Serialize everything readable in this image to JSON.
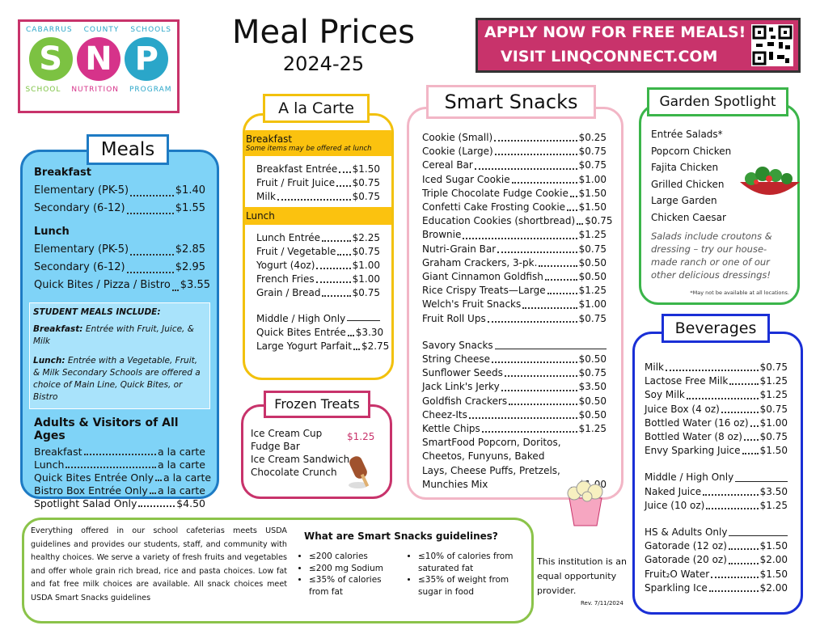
{
  "logo": {
    "top": [
      "CABARRUS",
      "COUNTY",
      "SCHOOLS"
    ],
    "letters": [
      "S",
      "N",
      "P"
    ],
    "bottom": [
      "SCHOOL",
      "NUTRITION",
      "PROGRAM"
    ]
  },
  "header": {
    "title": "Meal Prices",
    "year": "2024-25",
    "banner": [
      "APPLY NOW FOR FREE MEALS!",
      "VISIT LINQCONNECT.COM"
    ]
  },
  "meals": {
    "title": "Meals",
    "sections": [
      {
        "heading": "Breakfast",
        "items": [
          {
            "name": "Elementary (PK-5)",
            "price": "$1.40"
          },
          {
            "name": "Secondary (6-12)",
            "price": "$1.55"
          }
        ]
      },
      {
        "heading": "Lunch",
        "items": [
          {
            "name": "Elementary (PK-5)",
            "price": "$2.85"
          },
          {
            "name": "Secondary (6-12)",
            "price": "$2.95"
          },
          {
            "name": "Quick Bites / Pizza / Bistro",
            "price": "$3.55"
          }
        ]
      }
    ],
    "note": {
      "heading": "STUDENT MEALS INCLUDE:",
      "breakfast_label": "Breakfast:",
      "breakfast": "Entrée with Fruit, Juice, & Milk",
      "lunch_label": "Lunch:",
      "lunch": "Entrée with a Vegetable, Fruit, & Milk Secondary Schools are offered a choice of Main Line, Quick Bites, or Bistro"
    },
    "adults": {
      "heading": "Adults & Visitors of All Ages",
      "items": [
        {
          "name": "Breakfast",
          "price": "a la carte"
        },
        {
          "name": "Lunch",
          "price": "a la carte"
        },
        {
          "name": "Quick Bites Entrée Only",
          "price": "a la carte"
        },
        {
          "name": "Bistro Box Entrée Only",
          "price": "a la carte"
        },
        {
          "name": "Spotlight Salad Only",
          "price": "$4.50"
        }
      ]
    }
  },
  "a_la_carte": {
    "title": "A la Carte",
    "breakfast": {
      "heading": "Breakfast",
      "subheading": "Some items may be offered at lunch",
      "items": [
        {
          "name": "Breakfast Entrée",
          "price": "$1.50"
        },
        {
          "name": "Fruit / Fruit Juice",
          "price": "$0.75"
        },
        {
          "name": "Milk",
          "price": "$0.75"
        }
      ]
    },
    "lunch": {
      "heading": "Lunch",
      "items": [
        {
          "name": "Lunch Entrée",
          "price": "$2.25"
        },
        {
          "name": "Fruit / Vegetable",
          "price": "$0.75"
        },
        {
          "name": "Yogurt (4oz)",
          "price": "$1.00"
        },
        {
          "name": "French Fries",
          "price": "$1.00"
        },
        {
          "name": "Grain / Bread",
          "price": "$0.75"
        }
      ]
    },
    "middle_high": {
      "heading": "Middle / High Only",
      "items": [
        {
          "name": "Quick Bites Entrée",
          "price": "$3.30"
        },
        {
          "name": "Large Yogurt Parfait",
          "price": "$2.75"
        }
      ]
    }
  },
  "frozen_treats": {
    "title": "Frozen Treats",
    "items": [
      "Ice Cream Cup",
      "Fudge Bar",
      "Ice Cream Sandwich",
      "Chocolate Crunch"
    ],
    "price": "$1.25"
  },
  "smart_snacks": {
    "title": "Smart Snacks",
    "sections": [
      {
        "items": [
          {
            "name": "Cookie (Small)",
            "price": "$0.25"
          },
          {
            "name": "Cookie (Large)",
            "price": "$0.75"
          },
          {
            "name": "Cereal Bar",
            "price": "$0.75"
          },
          {
            "name": "Iced Sugar Cookie",
            "price": "$1.00"
          },
          {
            "name": "Triple Chocolate Fudge Cookie",
            "price": "$1.50"
          },
          {
            "name": "Confetti Cake Frosting Cookie",
            "price": "$1.50"
          },
          {
            "name": "Education Cookies (shortbread)",
            "price": "$0.75"
          },
          {
            "name": "Brownie",
            "price": "$1.25"
          },
          {
            "name": "Nutri-Grain Bar",
            "price": "$0.75"
          },
          {
            "name": "Graham Crackers, 3-pk.",
            "price": "$0.50"
          },
          {
            "name": "Giant Cinnamon Goldfish",
            "price": "$0.50"
          },
          {
            "name": "Rice Crispy Treats—Large",
            "price": "$1.25"
          },
          {
            "name": "Welch's Fruit Snacks",
            "price": "$1.00"
          },
          {
            "name": "Fruit Roll Ups",
            "price": "$0.75"
          }
        ]
      },
      {
        "heading": "Savory Snacks",
        "items": [
          {
            "name": "String Cheese",
            "price": "$0.50"
          },
          {
            "name": "Sunflower Seeds",
            "price": "$0.75"
          },
          {
            "name": "Jack Link's Jerky",
            "price": "$3.50"
          },
          {
            "name": "Goldfish Crackers",
            "price": "$0.50"
          },
          {
            "name": "Cheez-Its",
            "price": "$0.50"
          },
          {
            "name": "Kettle Chips",
            "price": "$1.25"
          },
          {
            "name": "SmartFood Popcorn, Doritos, Cheetos, Funyuns, Baked Lays, Cheese Puffs, Pretzels, Munchies Mix",
            "price": "$1.00"
          }
        ]
      }
    ]
  },
  "garden_spotlight": {
    "title": "Garden Spotlight",
    "items": [
      "Entrée Salads*",
      "Popcorn Chicken",
      "Fajita Chicken",
      "Grilled Chicken",
      "Large Garden",
      "Chicken Caesar"
    ],
    "note": "Salads include croutons & dressing – try our house-made ranch or one of our other delicious dressings!",
    "footnote": "*May not be available at all locations."
  },
  "beverages": {
    "title": "Beverages",
    "sections": [
      {
        "items": [
          {
            "name": "Milk",
            "price": "$0.75"
          },
          {
            "name": "Lactose Free Milk",
            "price": "$1.25"
          },
          {
            "name": "Soy Milk",
            "price": "$1.25"
          },
          {
            "name": "Juice Box (4 oz)",
            "price": "$0.75"
          },
          {
            "name": "Bottled Water (16 oz)",
            "price": "$1.00"
          },
          {
            "name": "Bottled Water (8 oz)",
            "price": "$0.75"
          },
          {
            "name": "Envy Sparking Juice",
            "price": "$1.50"
          }
        ]
      },
      {
        "heading": "Middle / High Only",
        "items": [
          {
            "name": "Naked Juice",
            "price": "$3.50"
          },
          {
            "name": "Juice (10 oz)",
            "price": "$1.25"
          }
        ]
      },
      {
        "heading": "HS & Adults Only",
        "items": [
          {
            "name": "Gatorade (12 oz)",
            "price": "$1.50"
          },
          {
            "name": "Gatorade (20 oz)",
            "price": "$2.00"
          },
          {
            "name": "Fruit₂O Water",
            "price": "$1.50"
          },
          {
            "name": "Sparkling Ice",
            "price": "$2.00"
          }
        ]
      }
    ]
  },
  "footer": {
    "usda": "Everything offered in our school cafeterias meets USDA guidelines and provides our students, staff, and community with healthy choices. We serve a variety of fresh fruits and vegetables and offer whole grain rich bread, rice and pasta choices. Low fat and fat free milk choices are available. All snack choices meet USDA Smart Snacks guidelines",
    "guidelines_title": "What are Smart Snacks guidelines?",
    "guidelines": [
      "≤200 calories",
      "≤200 mg Sodium",
      "≤35% of calories from fat",
      "≤10% of calories from saturated fat",
      "≤35% of weight from sugar in food"
    ],
    "equal_opportunity": "This institution is an equal opportunity provider.",
    "revision": "Rev. 7/11/2024"
  }
}
